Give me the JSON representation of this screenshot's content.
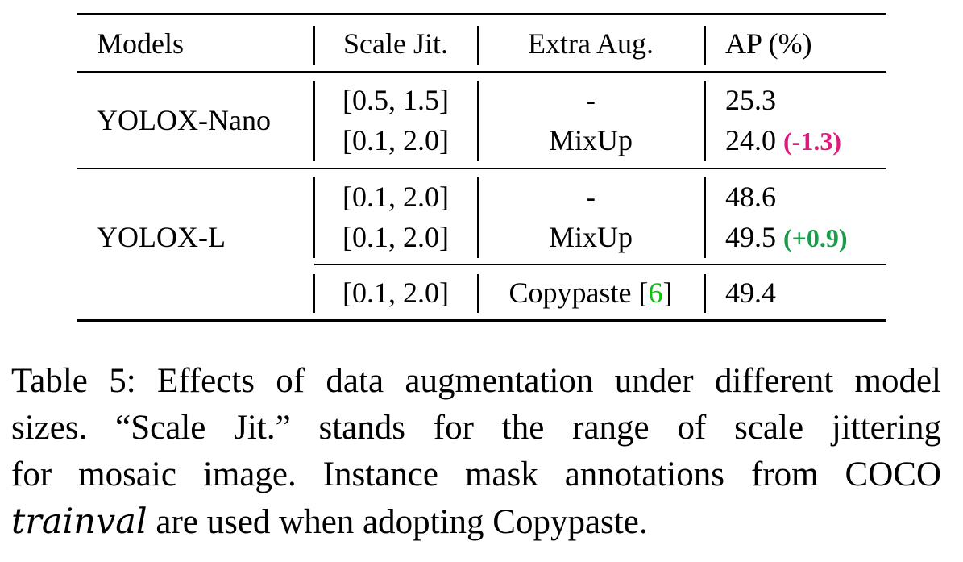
{
  "table": {
    "headers": [
      "Models",
      "Scale Jit.",
      "Extra Aug.",
      "AP (%)"
    ],
    "groups": [
      {
        "model": "YOLOX-Nano",
        "rows": [
          {
            "scale": "[0.5, 1.5]",
            "aug": "-",
            "ap": "25.3",
            "delta": ""
          },
          {
            "scale": "[0.1, 2.0]",
            "aug": "MixUp",
            "ap": "24.0",
            "delta": "(-1.3)"
          }
        ]
      },
      {
        "model": "YOLOX-L",
        "rows": [
          {
            "scale": "[0.1, 2.0]",
            "aug": "-",
            "ap": "48.6",
            "delta": ""
          },
          {
            "scale": "[0.1, 2.0]",
            "aug": "MixUp",
            "ap": "49.5",
            "delta": "(+0.9)"
          },
          {
            "scale": "[0.1, 2.0]",
            "aug": "Copypaste",
            "aug_cite": "6",
            "ap": "49.4",
            "delta": ""
          }
        ]
      }
    ],
    "colors": {
      "negative_delta": "#e0197d",
      "positive_delta": "#1a9c4a",
      "citation": "#10c010"
    }
  },
  "caption": {
    "lines": [
      "Table 5: Effects of data augmentation under different model",
      "sizes.  “Scale Jit.”  stands for the range of scale jittering",
      "for mosaic image. Instance mask annotations from COCO"
    ],
    "last_line_italic": "trainval",
    "last_line_rest": " are used when adopting Copypaste."
  }
}
